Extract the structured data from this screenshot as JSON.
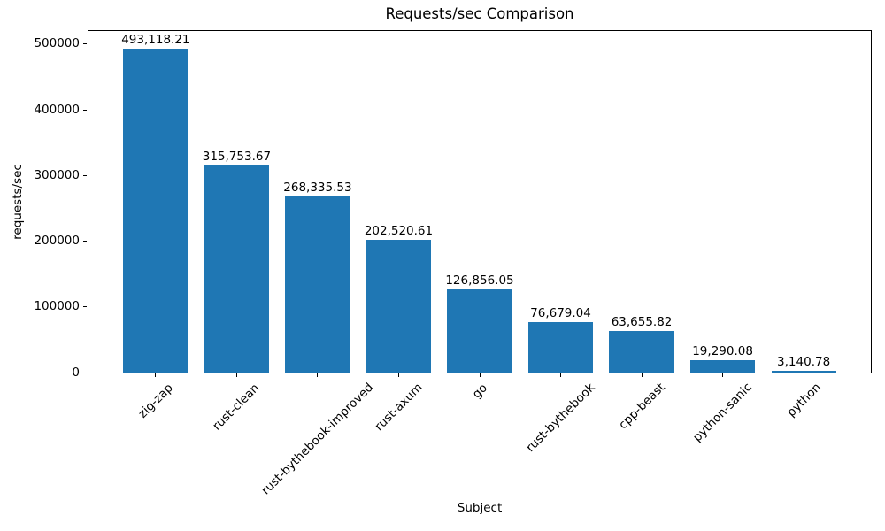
{
  "chart_data": {
    "type": "bar",
    "title": "Requests/sec Comparison",
    "xlabel": "Subject",
    "ylabel": "requests/sec",
    "categories": [
      "zig-zap",
      "rust-clean",
      "rust-bythebook-improved",
      "rust-axum",
      "go",
      "rust-bythebook",
      "cpp-beast",
      "python-sanic",
      "python"
    ],
    "values": [
      493118.21,
      315753.67,
      268335.53,
      202520.61,
      126856.05,
      76679.04,
      63655.82,
      19290.08,
      3140.78
    ],
    "bar_labels": [
      "493,118.21",
      "315,753.67",
      "268,335.53",
      "202,520.61",
      "126,856.05",
      "76,679.04",
      "63,655.82",
      "19,290.08",
      "3,140.78"
    ],
    "yticks": [
      0,
      100000,
      200000,
      300000,
      400000,
      500000
    ],
    "ylim": [
      0,
      520000
    ],
    "bar_color": "#1f77b4",
    "grid": false,
    "legend_position": "none",
    "x_tick_rotation_deg": 45
  }
}
